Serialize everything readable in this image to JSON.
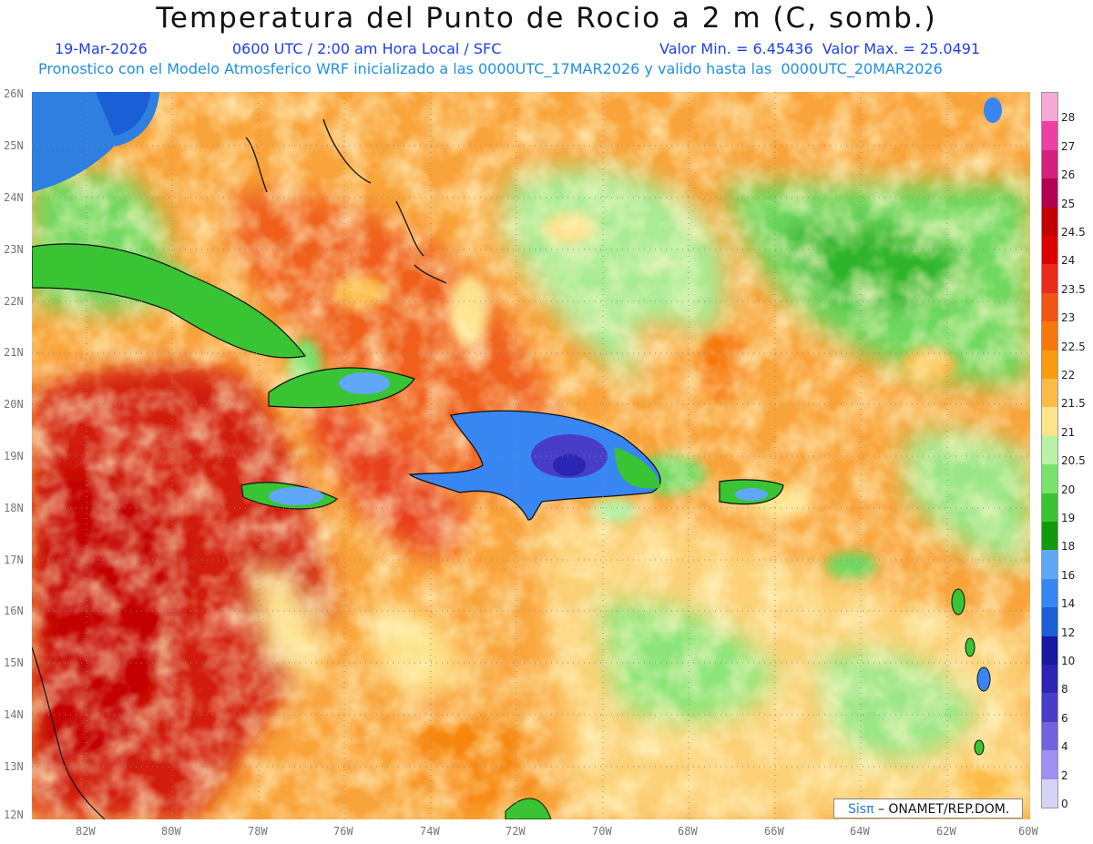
{
  "title": "Temperatura del Punto de Rocio a 2 m (C, somb.)",
  "date": "19-Mar-2026",
  "time_info": "0600 UTC / 2:00 am Hora Local / SFC",
  "min_max": "Valor Min. = 6.45436  Valor Max. = 25.0491",
  "model_info": "Pronostico con el Modelo Atmosferico WRF inicializado a las 0000UTC_17MAR2026 y valido hasta las  0000UTC_20MAR2026",
  "lat_labels": [
    "26N",
    "25N",
    "24N",
    "23N",
    "22N",
    "21N",
    "20N",
    "19N",
    "18N",
    "17N",
    "16N",
    "15N",
    "14N",
    "13N",
    "12N"
  ],
  "lon_labels": [
    "82W",
    "80W",
    "78W",
    "76W",
    "74W",
    "72W",
    "70W",
    "68W",
    "66W",
    "64W",
    "62W",
    "60W"
  ],
  "legend": {
    "labels": [
      "28",
      "27",
      "26",
      "25",
      "24.5",
      "24",
      "23.5",
      "23",
      "22.5",
      "22",
      "21.5",
      "21",
      "20.5",
      "20",
      "19",
      "18",
      "16",
      "14",
      "12",
      "10",
      "8",
      "6",
      "4",
      "2",
      "0"
    ],
    "colors": [
      "#f4a9d6",
      "#ee3fa5",
      "#d4207a",
      "#b20052",
      "#c40000",
      "#de0000",
      "#ec2a1a",
      "#f25413",
      "#f7780a",
      "#fb9c0f",
      "#fcbb46",
      "#fde38c",
      "#b7f2a5",
      "#78e36a",
      "#39c433",
      "#109a0e",
      "#5fa8f5",
      "#3886f2",
      "#1b5fd6",
      "#16189e",
      "#2a25b4",
      "#473dc8",
      "#7162dd",
      "#9e8ff0",
      "#d6d3f6"
    ]
  },
  "credit": {
    "brand": "Sisπ",
    "rest": " – ONAMET/REP.DOM."
  },
  "colors": {
    "sea_base": "#fbb04a",
    "land": "#2e7fe0"
  }
}
